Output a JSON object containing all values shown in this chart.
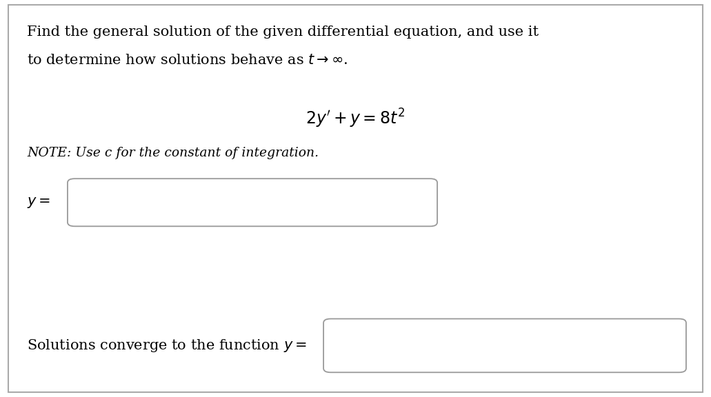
{
  "background_color": "#ffffff",
  "border_color": "#aaaaaa",
  "text_color": "#000000",
  "box_edge_color": "#999999",
  "title_line1": "Find the general solution of the given differential equation, and use it",
  "title_line2": "to determine how solutions behave as $t \\rightarrow \\infty$.",
  "equation": "$2y' + y = 8t^2$",
  "note": "NOTE: Use c for the constant of integration.",
  "y_label": "$y =$",
  "converge_label": "Solutions converge to the function $y =$",
  "figsize": [
    10.31,
    5.76
  ],
  "dpi": 100
}
